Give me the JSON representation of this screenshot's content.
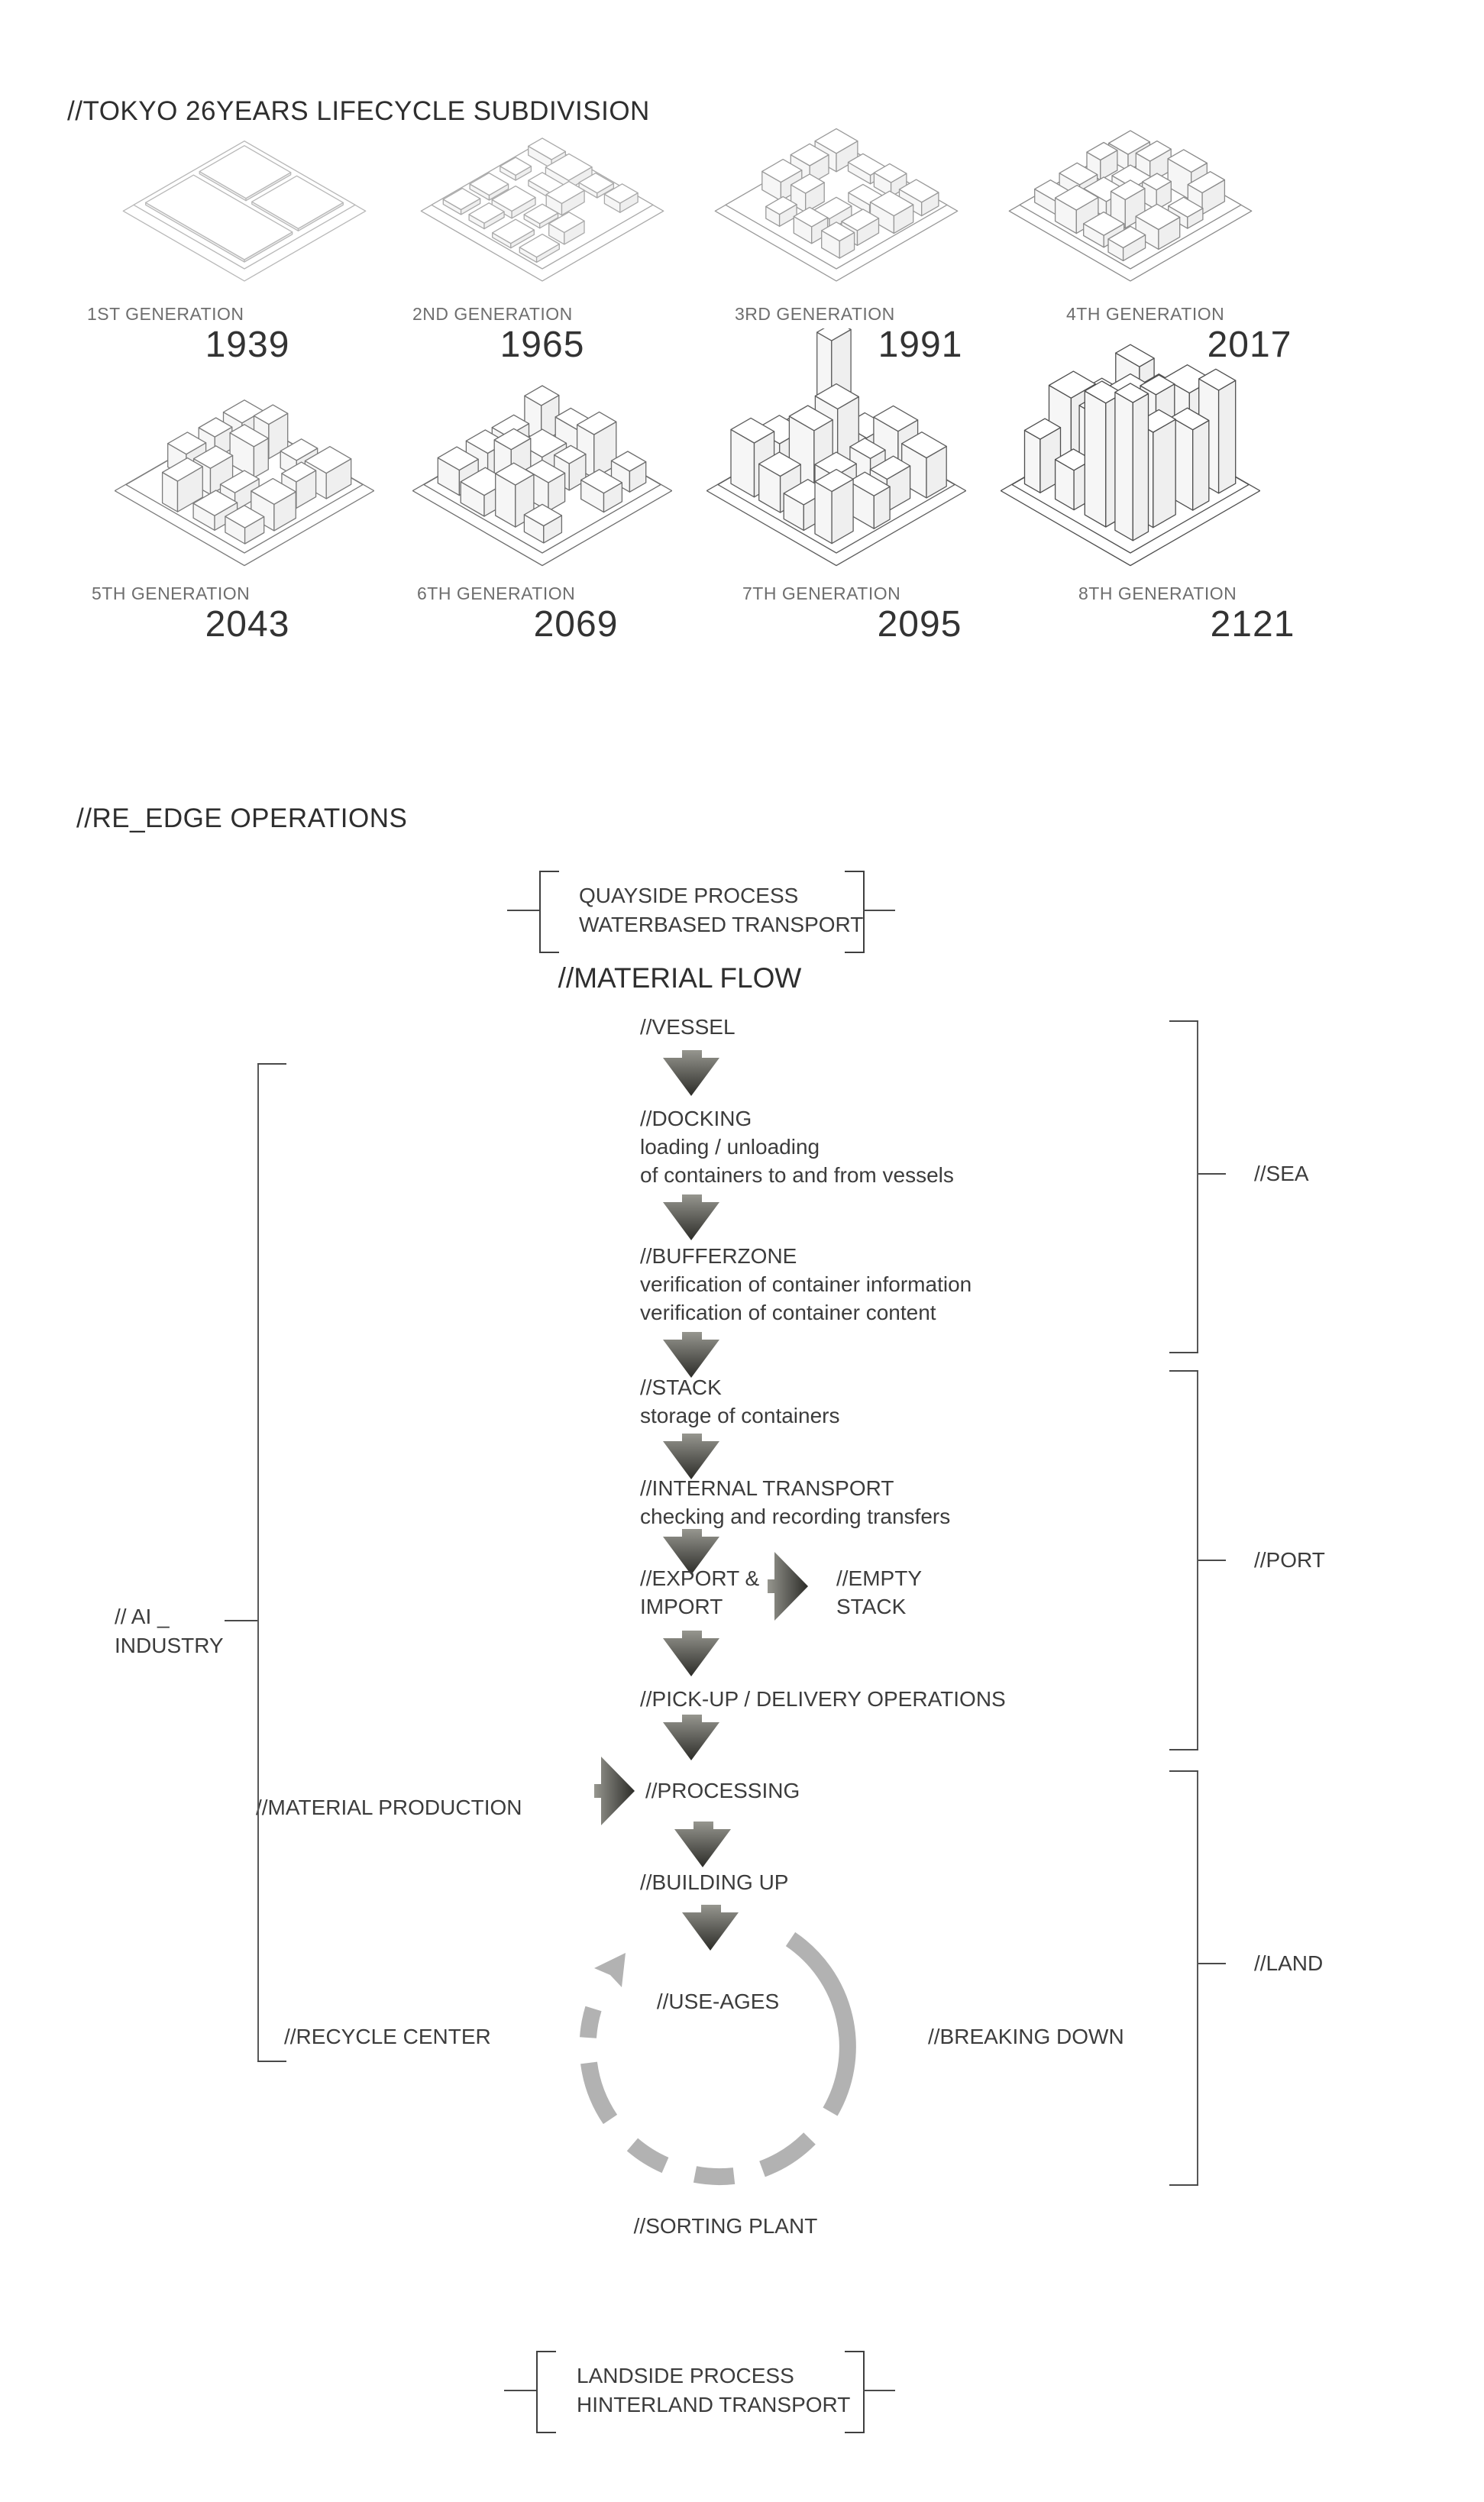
{
  "lifecycle": {
    "title": "//TOKYO 26YEARS LIFECYCLE SUBDIVISION",
    "generations": [
      {
        "label": "1ST GENERATION",
        "year": "1939"
      },
      {
        "label": "2ND GENERATION",
        "year": "1965"
      },
      {
        "label": "3RD GENERATION",
        "year": "1991"
      },
      {
        "label": "4TH GENERATION",
        "year": "2017"
      },
      {
        "label": "5TH GENERATION",
        "year": "2043"
      },
      {
        "label": "6TH GENERATION",
        "year": "2069"
      },
      {
        "label": "7TH GENERATION",
        "year": "2095"
      },
      {
        "label": "8TH GENERATION",
        "year": "2121"
      }
    ]
  },
  "operations": {
    "title": "//RE_EDGE OPERATIONS",
    "top_bracket": {
      "line1": "QUAYSIDE PROCESS",
      "line2": "WATERBASED TRANSPORT"
    },
    "flow_title": "//MATERIAL FLOW",
    "steps": [
      {
        "name": "//VESSEL",
        "desc": []
      },
      {
        "name": "//DOCKING",
        "desc": [
          "loading / unloading",
          "of containers to and from vessels"
        ]
      },
      {
        "name": "//BUFFERZONE",
        "desc": [
          "verification of container information",
          "verification of container content"
        ]
      },
      {
        "name": "//STACK",
        "desc": [
          "storage of containers"
        ]
      },
      {
        "name": "//INTERNAL TRANSPORT",
        "desc": [
          "checking and recording transfers"
        ]
      },
      {
        "name": "//PICK-UP / DELIVERY OPERATIONS",
        "desc": []
      },
      {
        "name": "//PROCESSING",
        "desc": []
      },
      {
        "name": "//BUILDING UP",
        "desc": []
      }
    ],
    "export_import": {
      "line1": "//EXPORT &",
      "line2": "IMPORT"
    },
    "empty_stack": {
      "line1": "//EMPTY",
      "line2": "STACK"
    },
    "side_labels": {
      "sea": "//SEA",
      "port": "//PORT",
      "land": "//LAND",
      "ai_line1": "// AI _",
      "ai_line2": "INDUSTRY",
      "material_production": "//MATERIAL PRODUCTION",
      "recycle_center": "//RECYCLE CENTER",
      "breaking_down": "//BREAKING DOWN",
      "use_ages": "//USE-AGES",
      "sorting_plant": "//SORTING PLANT"
    },
    "bottom_bracket": {
      "line1": "LANDSIDE PROCESS",
      "line2": "HINTERLAND TRANSPORT"
    }
  },
  "colors": {
    "arrow_light": "#96968f",
    "arrow_dark": "#2c2c28",
    "cycle_arc": "#b2b2b2",
    "line": "#4a4a4a",
    "text": "#3a3a3a",
    "drawing_stroke_min": "#b8b8b8",
    "drawing_stroke_max": "#5f5f5f"
  }
}
